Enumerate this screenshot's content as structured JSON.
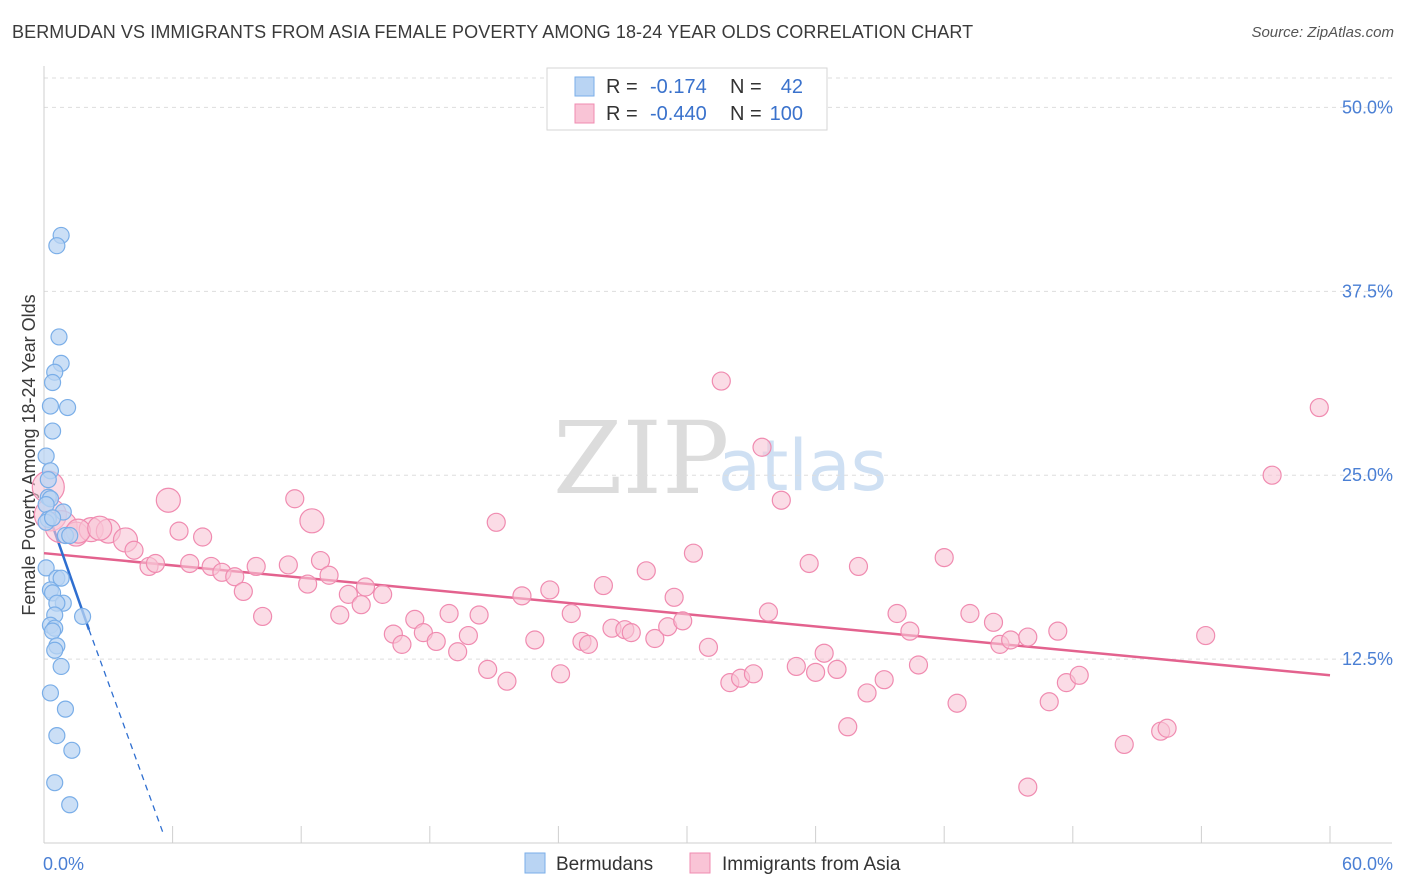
{
  "header": {
    "title": "BERMUDAN VS IMMIGRANTS FROM ASIA FEMALE POVERTY AMONG 18-24 YEAR OLDS CORRELATION CHART",
    "source": "Source: ZipAtlas.com"
  },
  "watermark": {
    "zip": "ZIP",
    "atlas": "atlas"
  },
  "chart_data": {
    "type": "scatter",
    "title": "BERMUDAN VS IMMIGRANTS FROM ASIA FEMALE POVERTY AMONG 18-24 YEAR OLDS CORRELATION CHART",
    "xlabel": "",
    "ylabel": "Female Poverty Among 18-24 Year Olds",
    "xlim": [
      0,
      60
    ],
    "ylim": [
      0,
      52
    ],
    "x_tick_labels": {
      "min": "0.0%",
      "max": "60.0%"
    },
    "y_ticks": [
      12.5,
      25.0,
      37.5,
      50.0
    ],
    "y_tick_labels": [
      "12.5%",
      "25.0%",
      "37.5%",
      "50.0%"
    ],
    "grid": true,
    "legend": {
      "placement": "top-center",
      "rows": [
        {
          "r_label": "R =",
          "r_value": "-0.174",
          "n_label": "N =",
          "n_value": "42"
        },
        {
          "r_label": "R =",
          "r_value": "-0.440",
          "n_label": "N =",
          "n_value": "100"
        }
      ]
    },
    "series": [
      {
        "name": "Bermudans",
        "color": "#7aaee8",
        "fill": "#b9d4f3",
        "trend_color": "#2f6fd0",
        "trend": {
          "x0": 0.2,
          "y0": 22.4,
          "x1": 2.1,
          "y1": 14.5,
          "dash_to": [
            5.6,
            0.5
          ]
        },
        "points": [
          [
            0.8,
            41.3
          ],
          [
            0.6,
            40.6
          ],
          [
            0.7,
            34.4
          ],
          [
            0.8,
            32.6
          ],
          [
            0.5,
            32.0
          ],
          [
            0.4,
            31.3
          ],
          [
            1.1,
            29.6
          ],
          [
            0.3,
            29.7
          ],
          [
            0.4,
            28.0
          ],
          [
            0.1,
            26.3
          ],
          [
            0.3,
            25.3
          ],
          [
            0.2,
            24.7
          ],
          [
            0.2,
            23.5
          ],
          [
            0.3,
            23.4
          ],
          [
            0.1,
            23.0
          ],
          [
            0.9,
            22.5
          ],
          [
            0.2,
            22.0
          ],
          [
            0.1,
            21.8
          ],
          [
            1.0,
            20.9
          ],
          [
            1.2,
            20.9
          ],
          [
            0.1,
            18.7
          ],
          [
            0.6,
            18.0
          ],
          [
            0.8,
            18.0
          ],
          [
            0.3,
            17.2
          ],
          [
            0.4,
            17.0
          ],
          [
            0.9,
            16.3
          ],
          [
            0.6,
            16.3
          ],
          [
            0.5,
            15.5
          ],
          [
            1.8,
            15.4
          ],
          [
            0.3,
            14.8
          ],
          [
            0.5,
            14.6
          ],
          [
            0.4,
            14.4
          ],
          [
            0.6,
            13.4
          ],
          [
            0.5,
            13.1
          ],
          [
            0.8,
            12.0
          ],
          [
            0.3,
            10.2
          ],
          [
            1.0,
            9.1
          ],
          [
            0.6,
            7.3
          ],
          [
            1.3,
            6.3
          ],
          [
            0.5,
            4.1
          ],
          [
            1.2,
            2.6
          ],
          [
            0.4,
            22.1
          ]
        ]
      },
      {
        "name": "Immigrants from Asia",
        "color": "#f08bb0",
        "fill": "#f9c4d6",
        "trend_color": "#e3628e",
        "trend": {
          "x0": 0,
          "y0": 19.7,
          "x1": 60,
          "y1": 11.4
        },
        "points": [
          [
            0.2,
            24.2
          ],
          [
            0.3,
            22.3
          ],
          [
            0.8,
            21.5
          ],
          [
            1.5,
            21.0
          ],
          [
            2.2,
            21.3
          ],
          [
            3.0,
            21.2
          ],
          [
            3.8,
            20.6
          ],
          [
            4.2,
            19.9
          ],
          [
            4.9,
            18.8
          ],
          [
            5.2,
            19.0
          ],
          [
            5.8,
            23.3
          ],
          [
            6.3,
            21.2
          ],
          [
            6.8,
            19.0
          ],
          [
            7.4,
            20.8
          ],
          [
            7.8,
            18.8
          ],
          [
            8.3,
            18.4
          ],
          [
            8.9,
            18.1
          ],
          [
            9.3,
            17.1
          ],
          [
            9.9,
            18.8
          ],
          [
            10.2,
            15.4
          ],
          [
            11.4,
            18.9
          ],
          [
            11.7,
            23.4
          ],
          [
            12.3,
            17.6
          ],
          [
            12.5,
            21.9
          ],
          [
            12.9,
            19.2
          ],
          [
            13.3,
            18.2
          ],
          [
            13.8,
            15.5
          ],
          [
            14.2,
            16.9
          ],
          [
            14.8,
            16.2
          ],
          [
            15.0,
            17.4
          ],
          [
            15.8,
            16.9
          ],
          [
            16.3,
            14.2
          ],
          [
            16.7,
            13.5
          ],
          [
            17.3,
            15.2
          ],
          [
            17.7,
            14.3
          ],
          [
            18.3,
            13.7
          ],
          [
            18.9,
            15.6
          ],
          [
            19.3,
            13.0
          ],
          [
            19.8,
            14.1
          ],
          [
            20.3,
            15.5
          ],
          [
            20.7,
            11.8
          ],
          [
            21.1,
            21.8
          ],
          [
            21.6,
            11.0
          ],
          [
            22.3,
            16.8
          ],
          [
            22.9,
            13.8
          ],
          [
            23.6,
            17.2
          ],
          [
            24.1,
            11.5
          ],
          [
            24.6,
            15.6
          ],
          [
            25.1,
            13.7
          ],
          [
            25.4,
            13.5
          ],
          [
            26.1,
            17.5
          ],
          [
            26.5,
            14.6
          ],
          [
            27.1,
            14.5
          ],
          [
            27.4,
            14.3
          ],
          [
            28.1,
            18.5
          ],
          [
            28.5,
            13.9
          ],
          [
            29.1,
            14.7
          ],
          [
            29.4,
            16.7
          ],
          [
            29.8,
            15.1
          ],
          [
            30.3,
            19.7
          ],
          [
            31.0,
            13.3
          ],
          [
            31.6,
            31.4
          ],
          [
            32.0,
            10.9
          ],
          [
            32.5,
            11.2
          ],
          [
            33.1,
            11.5
          ],
          [
            33.5,
            26.9
          ],
          [
            33.8,
            15.7
          ],
          [
            34.4,
            23.3
          ],
          [
            35.1,
            12.0
          ],
          [
            35.7,
            19.0
          ],
          [
            36.0,
            11.6
          ],
          [
            36.4,
            12.9
          ],
          [
            37.0,
            11.8
          ],
          [
            37.5,
            7.9
          ],
          [
            38.0,
            18.8
          ],
          [
            38.4,
            10.2
          ],
          [
            39.2,
            11.1
          ],
          [
            39.8,
            15.6
          ],
          [
            40.4,
            14.4
          ],
          [
            40.8,
            12.1
          ],
          [
            42.0,
            19.4
          ],
          [
            42.6,
            9.5
          ],
          [
            43.2,
            15.6
          ],
          [
            44.3,
            15.0
          ],
          [
            44.6,
            13.5
          ],
          [
            45.1,
            13.8
          ],
          [
            45.9,
            14.0
          ],
          [
            45.9,
            3.8
          ],
          [
            46.9,
            9.6
          ],
          [
            47.3,
            14.4
          ],
          [
            47.7,
            10.9
          ],
          [
            48.3,
            11.4
          ],
          [
            50.4,
            6.7
          ],
          [
            52.1,
            7.6
          ],
          [
            52.4,
            7.8
          ],
          [
            54.2,
            14.1
          ],
          [
            57.3,
            25.0
          ],
          [
            59.5,
            29.6
          ],
          [
            1.6,
            21.2
          ],
          [
            2.6,
            21.4
          ]
        ]
      }
    ]
  }
}
